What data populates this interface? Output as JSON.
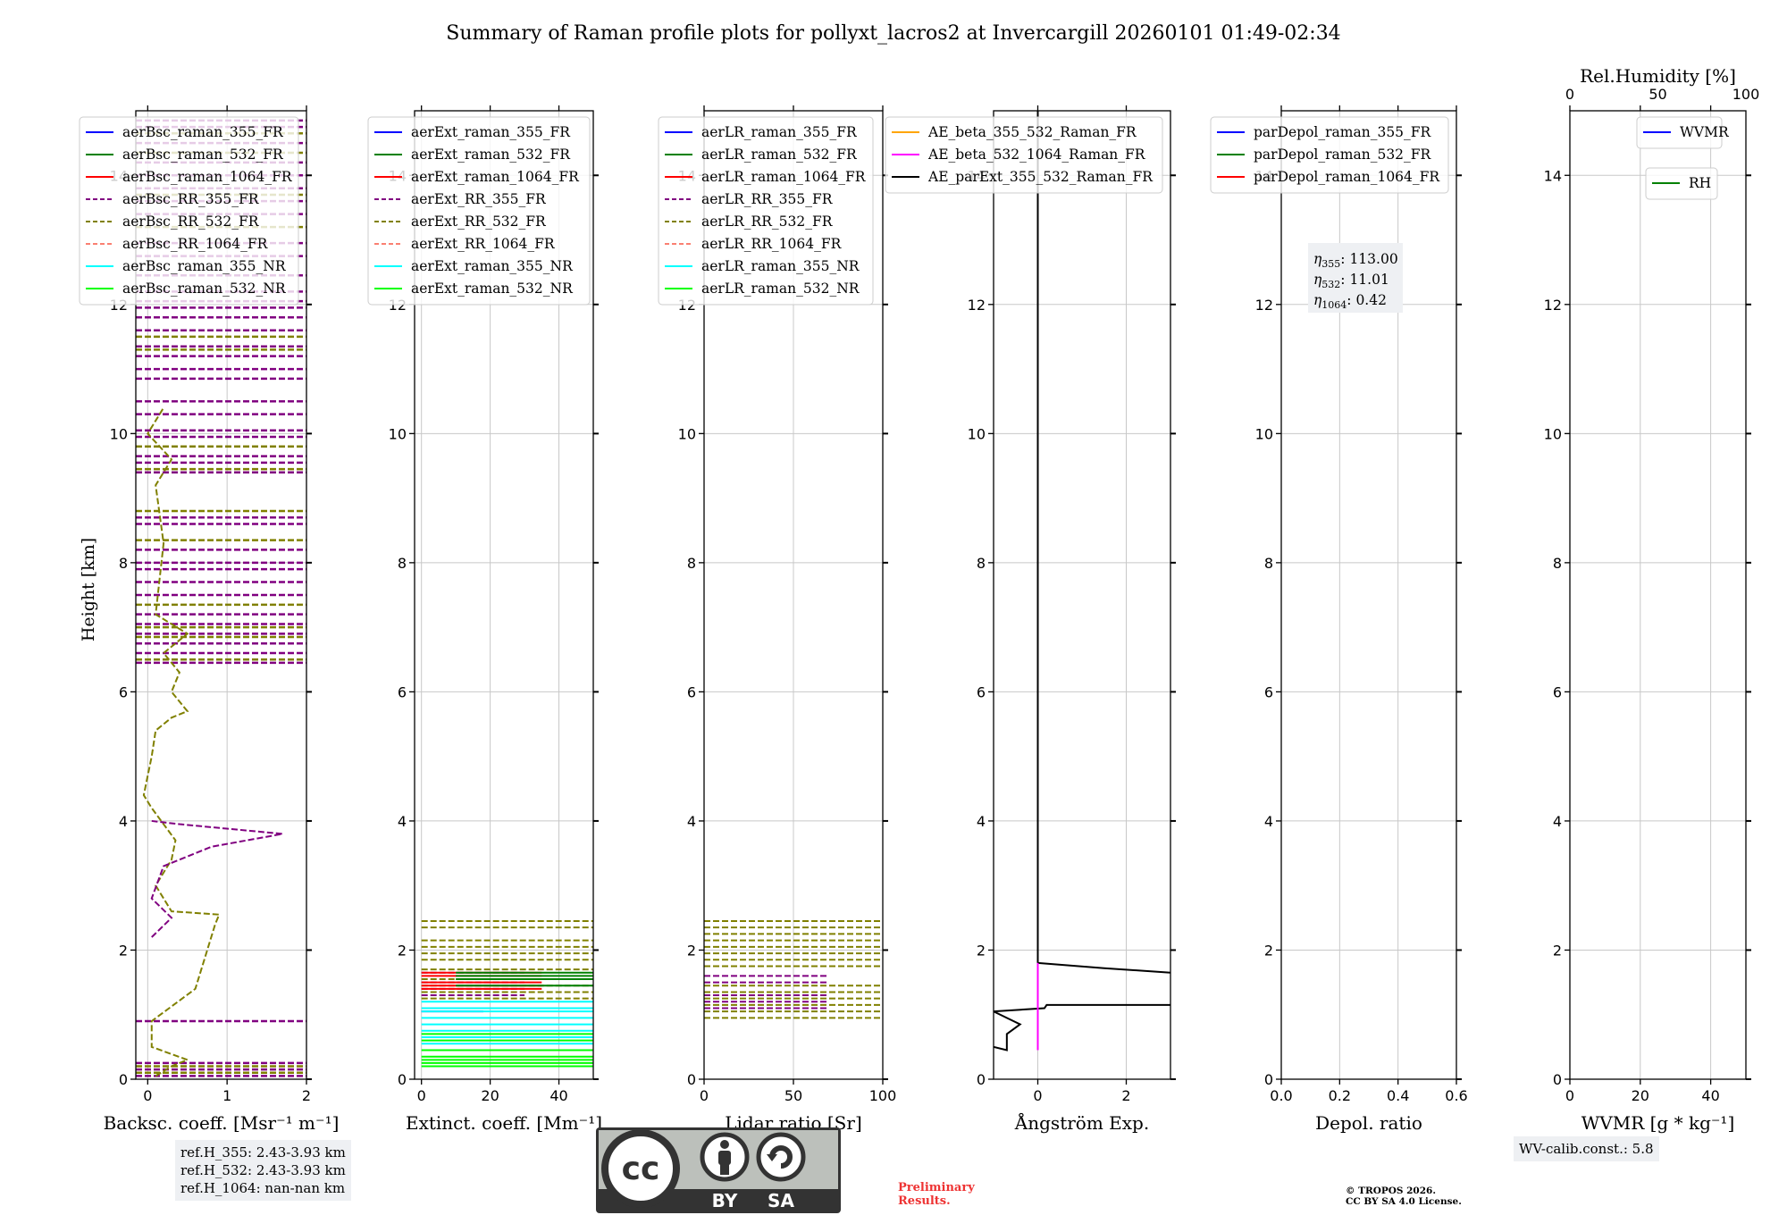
{
  "chart_data": {
    "type": "line",
    "title": "Summary of Raman profile plots for pollyxt_lacros2 at Invercargill 20260101 01:49-02:34",
    "ylabel": "Height [km]",
    "ylim": [
      0,
      15
    ],
    "yticks": [
      0,
      2,
      4,
      6,
      8,
      10,
      12,
      14
    ],
    "panels": [
      {
        "id": "bsc",
        "xlabel": "Backsc. coeff. [Msr⁻¹ m⁻¹]",
        "xlim": [
          -0.15,
          2.0
        ],
        "xticks": [
          0,
          1,
          2
        ],
        "legend": [
          {
            "label": "aerBsc_raman_355_FR",
            "color": "#0000ff",
            "dash": false
          },
          {
            "label": "aerBsc_raman_532_FR",
            "color": "#008000",
            "dash": false
          },
          {
            "label": "aerBsc_raman_1064_FR",
            "color": "#ff0000",
            "dash": false
          },
          {
            "label": "aerBsc_RR_355_FR",
            "color": "#800080",
            "dash": true
          },
          {
            "label": "aerBsc_RR_532_FR",
            "color": "#808000",
            "dash": true
          },
          {
            "label": "aerBsc_RR_1064_FR",
            "color": "#fa8072",
            "dash": true
          },
          {
            "label": "aerBsc_raman_355_NR",
            "color": "#00ffff",
            "dash": false
          },
          {
            "label": "aerBsc_raman_532_NR",
            "color": "#00ff00",
            "dash": false
          }
        ],
        "series": [
          {
            "name": "aerBsc_RR_532_FR",
            "color": "#808000",
            "dash": true,
            "points": [
              [
                0.1,
                0.05
              ],
              [
                0.3,
                0.2
              ],
              [
                0.5,
                0.3
              ],
              [
                0.05,
                0.5
              ],
              [
                0.05,
                0.9
              ],
              [
                0.6,
                1.4
              ],
              [
                0.7,
                1.8
              ],
              [
                0.85,
                2.4
              ],
              [
                0.9,
                2.55
              ],
              [
                0.3,
                2.6
              ],
              [
                0.1,
                3.0
              ],
              [
                0.3,
                3.4
              ],
              [
                0.35,
                3.7
              ],
              [
                0.2,
                3.95
              ],
              [
                0.05,
                4.2
              ],
              [
                -0.05,
                4.4
              ],
              [
                0.05,
                5.0
              ],
              [
                0.1,
                5.4
              ],
              [
                0.3,
                5.6
              ],
              [
                0.5,
                5.7
              ],
              [
                0.3,
                6.0
              ],
              [
                0.4,
                6.3
              ],
              [
                0.2,
                6.6
              ],
              [
                0.5,
                6.9
              ],
              [
                0.1,
                7.2
              ],
              [
                0.2,
                8.3
              ],
              [
                0.1,
                9.2
              ],
              [
                0.3,
                9.6
              ],
              [
                0.0,
                10.0
              ],
              [
                0.2,
                10.4
              ]
            ]
          },
          {
            "name": "aerBsc_RR_355_FR",
            "color": "#800080",
            "dash": true,
            "points": [
              [
                0.05,
                2.2
              ],
              [
                0.3,
                2.5
              ],
              [
                0.05,
                2.8
              ],
              [
                0.2,
                3.3
              ],
              [
                0.8,
                3.6
              ],
              [
                1.7,
                3.8
              ],
              [
                0.4,
                3.95
              ],
              [
                0.05,
                4.0
              ]
            ]
          }
        ],
        "hlines_355": [
          0.05,
          0.15,
          0.25,
          0.9,
          6.45,
          6.6,
          6.75,
          6.9,
          7.05,
          7.2,
          7.5,
          7.7,
          7.9,
          8.0,
          8.2,
          8.6,
          8.7,
          9.4,
          9.55,
          9.65,
          9.95,
          10.05,
          10.3,
          10.5,
          10.85,
          11.0,
          11.2,
          11.35,
          11.6,
          11.8,
          11.95,
          12.05,
          12.2,
          12.45,
          12.75,
          12.95,
          13.4,
          13.6,
          13.8,
          14.0,
          14.2,
          14.5,
          14.75,
          14.85
        ],
        "hlines_532": [
          0.1,
          0.2,
          6.5,
          6.85,
          7.0,
          7.35,
          8.35,
          8.8,
          9.45,
          9.8,
          11.3,
          11.5,
          13.2,
          13.7,
          14.35,
          14.65
        ]
      },
      {
        "id": "ext",
        "xlabel": "Extinct. coeff. [Mm⁻¹]",
        "xlim": [
          -2,
          50
        ],
        "xticks": [
          0,
          20,
          40
        ],
        "legend": [
          {
            "label": "aerExt_raman_355_FR",
            "color": "#0000ff",
            "dash": false
          },
          {
            "label": "aerExt_raman_532_FR",
            "color": "#008000",
            "dash": false
          },
          {
            "label": "aerExt_raman_1064_FR",
            "color": "#ff0000",
            "dash": false
          },
          {
            "label": "aerExt_RR_355_FR",
            "color": "#800080",
            "dash": true
          },
          {
            "label": "aerExt_RR_532_FR",
            "color": "#808000",
            "dash": true
          },
          {
            "label": "aerExt_RR_1064_FR",
            "color": "#fa8072",
            "dash": true
          },
          {
            "label": "aerExt_raman_355_NR",
            "color": "#00ffff",
            "dash": false
          },
          {
            "label": "aerExt_raman_532_NR",
            "color": "#00ff00",
            "dash": false
          }
        ],
        "hlines": [
          {
            "color": "#808000",
            "dash": true,
            "ys": [
              1.25,
              1.35,
              1.45,
              1.55,
              1.7,
              1.85,
              1.95,
              2.05,
              2.15,
              2.35,
              2.45
            ],
            "x0": 0,
            "x1": 50
          },
          {
            "color": "#800080",
            "dash": true,
            "ys": [
              1.3,
              1.4,
              1.5,
              1.65
            ],
            "x0": 0,
            "x1": 30
          },
          {
            "color": "#ff0000",
            "dash": false,
            "ys": [
              1.4,
              1.45,
              1.5,
              1.6,
              1.65
            ],
            "x0": 0,
            "x1": 35
          },
          {
            "color": "#008000",
            "dash": false,
            "ys": [
              1.45,
              1.55,
              1.6,
              1.65
            ],
            "x0": 10,
            "x1": 50
          },
          {
            "color": "#0000ff",
            "dash": false,
            "ys": [
              1.05
            ],
            "x0": 0,
            "x1": 18
          },
          {
            "color": "#00ffff",
            "dash": false,
            "ys": [
              0.55,
              0.65,
              0.75,
              0.85,
              0.95,
              1.05,
              1.1,
              1.2
            ],
            "x0": 0,
            "x1": 50
          },
          {
            "color": "#00ff00",
            "dash": false,
            "ys": [
              0.2,
              0.25,
              0.3,
              0.35,
              0.45,
              0.6,
              0.7
            ],
            "x0": 0,
            "x1": 50
          }
        ]
      },
      {
        "id": "lr",
        "xlabel": "Lidar ratio [Sr]",
        "xlim": [
          0,
          100
        ],
        "xticks": [
          0,
          50,
          100
        ],
        "legend": [
          {
            "label": "aerLR_raman_355_FR",
            "color": "#0000ff",
            "dash": false
          },
          {
            "label": "aerLR_raman_532_FR",
            "color": "#008000",
            "dash": false
          },
          {
            "label": "aerLR_raman_1064_FR",
            "color": "#ff0000",
            "dash": false
          },
          {
            "label": "aerLR_RR_355_FR",
            "color": "#800080",
            "dash": true
          },
          {
            "label": "aerLR_RR_532_FR",
            "color": "#808000",
            "dash": true
          },
          {
            "label": "aerLR_RR_1064_FR",
            "color": "#fa8072",
            "dash": true
          },
          {
            "label": "aerLR_raman_355_NR",
            "color": "#00ffff",
            "dash": false
          },
          {
            "label": "aerLR_raman_532_NR",
            "color": "#00ff00",
            "dash": false
          }
        ],
        "hlines": [
          {
            "color": "#808000",
            "dash": true,
            "ys": [
              0.95,
              1.05,
              1.15,
              1.25,
              1.35,
              1.45,
              1.75,
              1.85,
              1.95,
              2.05,
              2.15,
              2.25,
              2.35,
              2.45
            ],
            "x0": 0,
            "x1": 100
          },
          {
            "color": "#800080",
            "dash": true,
            "ys": [
              1.1,
              1.2,
              1.3,
              1.5,
              1.6
            ],
            "x0": 0,
            "x1": 70
          }
        ]
      },
      {
        "id": "ae",
        "xlabel": "Ångström Exp.",
        "xlim": [
          -1,
          3
        ],
        "xticks": [
          0,
          2
        ],
        "legend": [
          {
            "label": "AE_beta_355_532_Raman_FR",
            "color": "#ffa500",
            "dash": false
          },
          {
            "label": "AE_beta_532_1064_Raman_FR",
            "color": "#ff00ff",
            "dash": false
          },
          {
            "label": "AE_parExt_355_532_Raman_FR",
            "color": "#000000",
            "dash": false
          }
        ],
        "series": [
          {
            "name": "AE_parExt_355_532_Raman_FR",
            "color": "#000000",
            "points": [
              [
                -1.0,
                0.5
              ],
              [
                -0.7,
                0.45
              ],
              [
                -0.7,
                0.7
              ],
              [
                -0.4,
                0.85
              ],
              [
                -0.7,
                0.95
              ],
              [
                -1.0,
                1.05
              ],
              [
                0.15,
                1.1
              ],
              [
                0.2,
                1.15
              ],
              [
                3.0,
                1.15
              ]
            ]
          },
          {
            "name": "AE_parExt_upper",
            "color": "#000000",
            "points": [
              [
                0.0,
                1.8
              ],
              [
                1.5,
                1.72
              ],
              [
                3.0,
                1.65
              ]
            ]
          },
          {
            "name": "AE_parExt_vertical",
            "color": "#000000",
            "points": [
              [
                0.0,
                1.8
              ],
              [
                0.0,
                15.0
              ]
            ]
          },
          {
            "name": "AE_beta_532_1064_Raman_FR",
            "color": "#ff00ff",
            "points": [
              [
                0.0,
                0.45
              ],
              [
                0.0,
                1.8
              ]
            ]
          }
        ]
      },
      {
        "id": "depol",
        "xlabel": "Depol. ratio",
        "xlim": [
          0,
          0.6
        ],
        "xticks": [
          0.0,
          0.2,
          0.4,
          0.6
        ],
        "legend": [
          {
            "label": "parDepol_raman_355_FR",
            "color": "#0000ff",
            "dash": false
          },
          {
            "label": "parDepol_raman_532_FR",
            "color": "#008000",
            "dash": false
          },
          {
            "label": "parDepol_raman_1064_FR",
            "color": "#ff0000",
            "dash": false
          }
        ],
        "annotation": [
          {
            "symbol": "η",
            "sub": "355",
            "value": ": 113.00"
          },
          {
            "symbol": "η",
            "sub": "532",
            "value": ": 11.01"
          },
          {
            "symbol": "η",
            "sub": "1064",
            "value": ": 0.42"
          }
        ]
      },
      {
        "id": "wv",
        "xlabel": "WVMR [g * kg⁻¹]",
        "xlim": [
          0,
          50
        ],
        "xticks": [
          0,
          20,
          40
        ],
        "top_xlabel": "Rel.Humidity [%]",
        "top_xlim": [
          0,
          100
        ],
        "top_xticks": [
          0,
          50,
          100
        ],
        "legend": [
          {
            "label": "WVMR",
            "color": "#0000ff",
            "dash": false
          }
        ],
        "legend2": [
          {
            "label": "RH",
            "color": "#008000",
            "dash": false
          }
        ]
      }
    ]
  },
  "footer": {
    "ref_heights": "ref.H_355: 2.43-3.93 km\nref.H_532: 2.43-3.93 km\nref.H_1064: nan-nan km",
    "wv_calib": "WV-calib.const.: 5.8",
    "preliminary": "Preliminary Results.",
    "copyright": "© TROPOS 2026.\nCC BY SA 4.0 License.",
    "license_badge": {
      "cc": "cc",
      "by": "BY",
      "sa": "SA"
    }
  }
}
